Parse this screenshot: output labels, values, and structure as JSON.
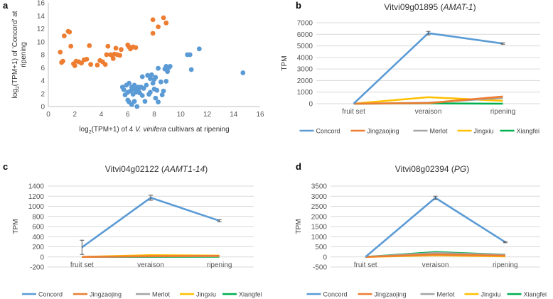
{
  "colors": {
    "Concord": "#5b9bd5",
    "Jingzaojing": "#ed7d31",
    "Merlot": "#a5a5a5",
    "Jingxiu": "#ffc000",
    "Xiangfei": "#00b050",
    "scatter_orange": "#ed7d31",
    "scatter_blue": "#5b9bd5"
  },
  "chart_data": [
    {
      "id": "a",
      "letter": "a",
      "type": "scatter",
      "title": "",
      "xlabel": "log₂(TPM+1) of 4 V. vinifera cultivars at ripening",
      "xlabel_parts": [
        "log",
        "2",
        "(TPM+1) of 4 ",
        "V. vinifera",
        " cultivars at ripening"
      ],
      "ylabel_lines": [
        "log₂(TPM+1) of 'Concord' at",
        "ripening"
      ],
      "ylabel_parts": [
        "log",
        "2",
        "(TPM+1) of 'Concord' at"
      ],
      "ylabel_line2": "ripening",
      "xlim": [
        0,
        16
      ],
      "ylim": [
        0,
        16
      ],
      "xticks": [
        0,
        2,
        4,
        6,
        8,
        10,
        12,
        14,
        16
      ],
      "yticks": [
        0,
        2,
        4,
        6,
        8,
        10,
        12,
        14,
        16
      ],
      "grid": false,
      "series": [
        {
          "name": "orange",
          "color": "#ed7d31",
          "points": [
            [
              0.9,
              8.4
            ],
            [
              1.0,
              6.8
            ],
            [
              1.1,
              7.0
            ],
            [
              1.2,
              10.9
            ],
            [
              1.5,
              11.6
            ],
            [
              1.6,
              11.5
            ],
            [
              1.7,
              9.3
            ],
            [
              1.9,
              6.6
            ],
            [
              2.0,
              6.3
            ],
            [
              2.1,
              7.0
            ],
            [
              2.3,
              6.9
            ],
            [
              2.5,
              6.7
            ],
            [
              2.7,
              7.2
            ],
            [
              2.9,
              7.3
            ],
            [
              3.1,
              9.4
            ],
            [
              3.2,
              6.5
            ],
            [
              3.7,
              6.4
            ],
            [
              3.9,
              7.1
            ],
            [
              4.1,
              6.9
            ],
            [
              4.3,
              6.5
            ],
            [
              4.4,
              8.0
            ],
            [
              4.5,
              9.3
            ],
            [
              4.7,
              8.0
            ],
            [
              4.8,
              7.9
            ],
            [
              4.9,
              7.4
            ],
            [
              5.0,
              8.1
            ],
            [
              5.1,
              9.0
            ],
            [
              5.2,
              8.0
            ],
            [
              5.4,
              7.9
            ],
            [
              5.5,
              8.8
            ],
            [
              6.0,
              9.5
            ],
            [
              6.1,
              9.2
            ],
            [
              6.2,
              8.9
            ],
            [
              6.4,
              9.2
            ],
            [
              6.6,
              9.1
            ],
            [
              7.9,
              13.4
            ],
            [
              7.9,
              11.3
            ],
            [
              8.3,
              12.3
            ],
            [
              8.7,
              13.7
            ],
            [
              8.9,
              12.9
            ]
          ]
        },
        {
          "name": "blue",
          "color": "#5b9bd5",
          "points": [
            [
              5.6,
              3.0
            ],
            [
              5.7,
              2.6
            ],
            [
              5.8,
              1.8
            ],
            [
              5.9,
              3.3
            ],
            [
              6.0,
              1.0
            ],
            [
              6.0,
              2.2
            ],
            [
              6.1,
              0.7
            ],
            [
              6.1,
              3.6
            ],
            [
              6.2,
              2.4
            ],
            [
              6.3,
              0.3
            ],
            [
              6.3,
              3.0
            ],
            [
              6.4,
              1.9
            ],
            [
              6.4,
              2.7
            ],
            [
              6.5,
              0.8
            ],
            [
              6.5,
              3.3
            ],
            [
              6.6,
              2.2
            ],
            [
              6.6,
              2.9
            ],
            [
              6.7,
              0.0
            ],
            [
              6.7,
              2.4
            ],
            [
              6.8,
              3.0
            ],
            [
              6.8,
              2.6
            ],
            [
              6.9,
              2.1
            ],
            [
              7.0,
              3.0
            ],
            [
              7.1,
              1.7
            ],
            [
              7.1,
              4.6
            ],
            [
              7.2,
              2.8
            ],
            [
              7.3,
              0.8
            ],
            [
              7.4,
              3.3
            ],
            [
              7.5,
              4.8
            ],
            [
              7.6,
              1.9
            ],
            [
              7.7,
              4.3
            ],
            [
              7.7,
              2.2
            ],
            [
              7.8,
              4.9
            ],
            [
              7.9,
              3.6
            ],
            [
              8.0,
              2.7
            ],
            [
              8.0,
              4.2
            ],
            [
              8.1,
              1.3
            ],
            [
              8.1,
              4.5
            ],
            [
              8.2,
              2.5
            ],
            [
              8.3,
              0.7
            ],
            [
              8.3,
              5.9
            ],
            [
              8.5,
              3.8
            ],
            [
              8.6,
              1.8
            ],
            [
              8.7,
              2.4
            ],
            [
              8.8,
              5.8
            ],
            [
              8.9,
              3.9
            ],
            [
              8.9,
              6.2
            ],
            [
              9.0,
              5.4
            ],
            [
              9.1,
              6.0
            ],
            [
              9.2,
              6.2
            ],
            [
              10.5,
              8.0
            ],
            [
              10.7,
              8.0
            ],
            [
              10.8,
              5.7
            ],
            [
              11.4,
              8.9
            ],
            [
              14.7,
              5.2
            ]
          ]
        }
      ]
    },
    {
      "id": "b",
      "letter": "b",
      "type": "line",
      "title_plain": "Vitvi09g01895",
      "title_italic": "AMAT-1",
      "ylabel": "TPM",
      "categories": [
        "fruit set",
        "veraison",
        "ripening"
      ],
      "ylim": [
        0,
        7000
      ],
      "yticks": [
        0,
        1000,
        2000,
        3000,
        4000,
        5000,
        6000,
        7000
      ],
      "ytick_labels": [
        "0",
        "1000",
        "2000",
        "3000",
        "4000",
        "5000",
        "6000",
        "7000"
      ],
      "grid": true,
      "series": [
        {
          "name": "Concord",
          "values": [
            0,
            6100,
            5200
          ],
          "err": [
            0,
            150,
            60
          ]
        },
        {
          "name": "Jingzaojing",
          "values": [
            0,
            50,
            620
          ],
          "err": [
            0,
            0,
            0
          ]
        },
        {
          "name": "Merlot",
          "values": [
            0,
            80,
            500
          ],
          "err": [
            0,
            0,
            0
          ]
        },
        {
          "name": "Jingxiu",
          "values": [
            0,
            560,
            250
          ],
          "err": [
            0,
            0,
            0
          ]
        },
        {
          "name": "Xiangfei",
          "values": [
            0,
            30,
            0
          ],
          "err": [
            0,
            0,
            0
          ]
        }
      ]
    },
    {
      "id": "c",
      "letter": "c",
      "type": "line",
      "title_plain": "Vitvi04g02122",
      "title_italic": "AAMT1-14",
      "ylabel": "TPM",
      "categories": [
        "fruit set",
        "veraison",
        "ripening"
      ],
      "ylim": [
        -200,
        1400
      ],
      "yticks": [
        -200,
        0,
        200,
        400,
        600,
        800,
        1000,
        1200,
        1400
      ],
      "ytick_labels": [
        "-200",
        "0",
        "200",
        "400",
        "600",
        "800",
        "1000",
        "1200",
        "1400"
      ],
      "grid": true,
      "series": [
        {
          "name": "Concord",
          "values": [
            190,
            1170,
            715
          ],
          "err": [
            140,
            50,
            20
          ]
        },
        {
          "name": "Jingzaojing",
          "values": [
            0,
            15,
            20
          ],
          "err": [
            0,
            0,
            0
          ]
        },
        {
          "name": "Merlot",
          "values": [
            0,
            10,
            15
          ],
          "err": [
            0,
            0,
            0
          ]
        },
        {
          "name": "Jingxiu",
          "values": [
            0,
            35,
            25
          ],
          "err": [
            0,
            0,
            0
          ]
        },
        {
          "name": "Xiangfei",
          "values": [
            0,
            0,
            5
          ],
          "err": [
            0,
            0,
            0
          ]
        }
      ]
    },
    {
      "id": "d",
      "letter": "d",
      "type": "line",
      "title_plain": "Vitvi08g02394",
      "title_italic": "PG",
      "ylabel": "TPM",
      "categories": [
        "fruit set",
        "veraison",
        "ripening"
      ],
      "ylim": [
        -500,
        3500
      ],
      "yticks": [
        -500,
        0,
        500,
        1000,
        1500,
        2000,
        2500,
        3000,
        3500
      ],
      "ytick_labels": [
        "-500",
        "0",
        "500",
        "1000",
        "1500",
        "2000",
        "2500",
        "3000",
        "3500"
      ],
      "grid": true,
      "series": [
        {
          "name": "Concord",
          "values": [
            0,
            2920,
            730
          ],
          "err": [
            0,
            80,
            30
          ]
        },
        {
          "name": "Jingzaojing",
          "values": [
            0,
            120,
            60
          ],
          "err": [
            0,
            0,
            0
          ]
        },
        {
          "name": "Merlot",
          "values": [
            0,
            200,
            100
          ],
          "err": [
            0,
            0,
            0
          ]
        },
        {
          "name": "Jingxiu",
          "values": [
            0,
            80,
            30
          ],
          "err": [
            0,
            0,
            0
          ]
        },
        {
          "name": "Xiangfei",
          "values": [
            0,
            240,
            110
          ],
          "err": [
            0,
            0,
            0
          ]
        }
      ]
    }
  ]
}
